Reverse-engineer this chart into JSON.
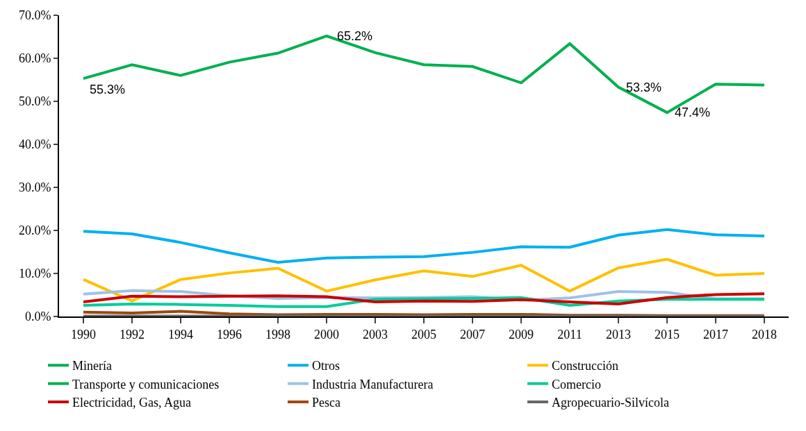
{
  "chart_data": {
    "type": "line",
    "categories": [
      "1990",
      "1992",
      "1994",
      "1996",
      "1998",
      "2000",
      "2003",
      "2005",
      "2007",
      "2009",
      "2011",
      "2013",
      "2015",
      "2017",
      "2018"
    ],
    "series": [
      {
        "name": "Minería",
        "color": "#00b050",
        "values": [
          55.3,
          58.5,
          56.0,
          59.1,
          61.2,
          65.2,
          61.3,
          58.5,
          58.1,
          54.3,
          63.4,
          53.3,
          47.4,
          54.0,
          53.8
        ],
        "value_labels": [
          "55.3%",
          null,
          null,
          null,
          null,
          "65.2%",
          null,
          null,
          null,
          null,
          null,
          "53.3%",
          "47.4%",
          null,
          null
        ]
      },
      {
        "name": "Otros",
        "color": "#00b0f0",
        "values": [
          19.8,
          19.2,
          17.2,
          14.8,
          12.6,
          13.6,
          13.8,
          13.9,
          14.9,
          16.2,
          16.1,
          18.9,
          20.2,
          19.0,
          18.7
        ]
      },
      {
        "name": "Construcción",
        "color": "#ffc000",
        "values": [
          8.6,
          3.6,
          8.6,
          10.1,
          11.2,
          5.9,
          8.5,
          10.6,
          9.3,
          11.9,
          5.9,
          11.3,
          13.3,
          9.6,
          10.0
        ]
      },
      {
        "name": "Transporte y comunicaciones",
        "color": "#00b050",
        "values": [
          null,
          null,
          null,
          null,
          null,
          null,
          null,
          null,
          null,
          null,
          null,
          null,
          null,
          null,
          null
        ]
      },
      {
        "name": "Industria Manufacturera",
        "color": "#9dc3e6",
        "values": [
          5.2,
          6.0,
          5.8,
          4.8,
          4.2,
          4.4,
          4.3,
          4.4,
          4.6,
          3.8,
          4.3,
          5.8,
          5.6,
          4.1,
          4.1
        ]
      },
      {
        "name": "Comercio",
        "color": "#00cc99",
        "values": [
          2.6,
          2.9,
          2.8,
          2.6,
          2.3,
          2.3,
          4.0,
          4.1,
          4.2,
          4.4,
          2.6,
          3.6,
          4.0,
          4.0,
          4.0
        ]
      },
      {
        "name": "Electricidad, Gas, Agua",
        "color": "#cc0000",
        "values": [
          3.4,
          4.7,
          4.6,
          4.7,
          4.8,
          4.6,
          3.4,
          3.6,
          3.5,
          3.9,
          3.4,
          2.9,
          4.4,
          5.1,
          5.3
        ]
      },
      {
        "name": "Pesca",
        "color": "#9e480e",
        "values": [
          1.0,
          0.8,
          1.2,
          0.6,
          0.4,
          0.5,
          0.5,
          0.4,
          0.5,
          0.5,
          0.3,
          0.3,
          0.2,
          0.2,
          0.2
        ]
      },
      {
        "name": "Agropecuario-Silvícola",
        "color": "#666666",
        "values": [
          0.1,
          0.1,
          0.1,
          0.1,
          0.1,
          0.1,
          0.1,
          0.1,
          0.1,
          0.1,
          0.1,
          0.1,
          0.1,
          0.1,
          0.1
        ]
      }
    ],
    "ylim": [
      0,
      70
    ],
    "yticks": [
      {
        "value": 0,
        "label": "0.0%"
      },
      {
        "value": 10,
        "label": "10.0%"
      },
      {
        "value": 20,
        "label": "20.0%"
      },
      {
        "value": 30,
        "label": "30.0%"
      },
      {
        "value": 40,
        "label": "40.0%"
      },
      {
        "value": 50,
        "label": "50.0%"
      },
      {
        "value": 60,
        "label": "60.0%"
      },
      {
        "value": 70,
        "label": "70.0%"
      }
    ],
    "legend": "bottom",
    "marker": "none",
    "line_style": "solid"
  }
}
